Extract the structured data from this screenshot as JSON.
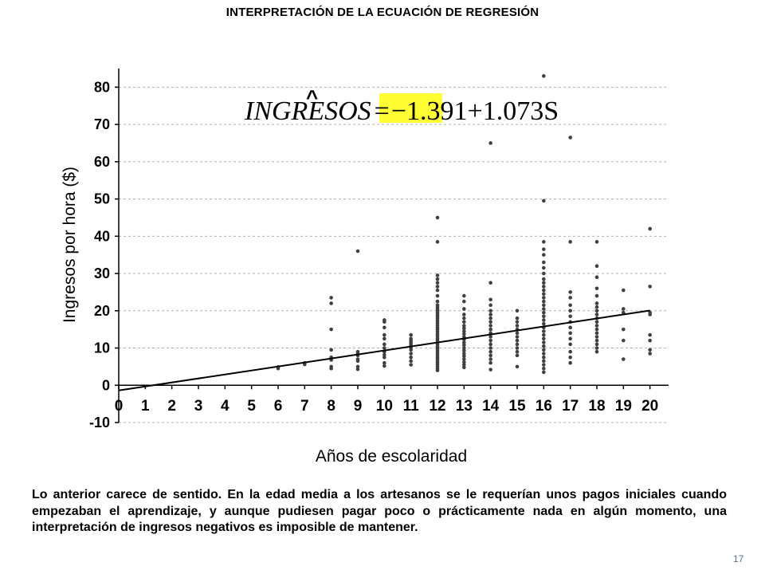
{
  "title": "INTERPRETACIÓN DE LA ECUACIÓN DE REGRESIÓN",
  "chart_data": {
    "type": "scatter",
    "xlabel": "Años de escolaridad",
    "ylabel": "Ingresos por hora ($)",
    "xlim": [
      0,
      20.7
    ],
    "ylim": [
      -10,
      85
    ],
    "x_ticks": [
      "0",
      "1",
      "2",
      "3",
      "4",
      "5",
      "6",
      "7",
      "8",
      "9",
      "10",
      "11",
      "12",
      "13",
      "14",
      "15",
      "16",
      "17",
      "18",
      "19",
      "20"
    ],
    "y_ticks": [
      "-10",
      "0",
      "10",
      "20",
      "30",
      "40",
      "50",
      "60",
      "70",
      "80"
    ],
    "grid": true,
    "equation": {
      "hat": "^",
      "lhs": "INGRESOS",
      "equals": "=",
      "intercept": "−1.391",
      "rest": "+1.073S",
      "highlight_color": "#ffff33"
    },
    "regression_line": {
      "intercept": -1.391,
      "slope": 1.073,
      "x_range": [
        0,
        20
      ]
    },
    "point_color": "#404040",
    "points": [
      [
        6,
        4.5
      ],
      [
        6,
        4.9
      ],
      [
        7,
        5.6
      ],
      [
        7,
        6.0
      ],
      [
        8,
        4.5
      ],
      [
        8,
        5.0
      ],
      [
        8,
        6.8
      ],
      [
        8,
        7.5
      ],
      [
        8,
        9.5
      ],
      [
        8,
        15.0
      ],
      [
        8,
        22.0
      ],
      [
        8,
        23.5
      ],
      [
        9,
        4.3
      ],
      [
        9,
        5.0
      ],
      [
        9,
        6.5
      ],
      [
        9,
        7.0
      ],
      [
        9,
        8.0
      ],
      [
        9,
        8.5
      ],
      [
        9,
        9.0
      ],
      [
        9,
        36.0
      ],
      [
        10,
        5.2
      ],
      [
        10,
        6.0
      ],
      [
        10,
        7.5
      ],
      [
        10,
        8.2
      ],
      [
        10,
        9.0
      ],
      [
        10,
        10.0
      ],
      [
        10,
        11.0
      ],
      [
        10,
        12.5
      ],
      [
        10,
        13.5
      ],
      [
        10,
        15.5
      ],
      [
        10,
        17.0
      ],
      [
        10,
        17.5
      ],
      [
        11,
        5.5
      ],
      [
        11,
        6.5
      ],
      [
        11,
        7.5
      ],
      [
        11,
        8.5
      ],
      [
        11,
        9.5
      ],
      [
        11,
        10.0
      ],
      [
        11,
        10.5
      ],
      [
        11,
        11.0
      ],
      [
        11,
        11.5
      ],
      [
        11,
        12.0
      ],
      [
        11,
        12.5
      ],
      [
        11,
        13.5
      ],
      [
        12,
        4.0
      ],
      [
        12,
        4.5
      ],
      [
        12,
        5.0
      ],
      [
        12,
        5.5
      ],
      [
        12,
        6.0
      ],
      [
        12,
        6.5
      ],
      [
        12,
        7.0
      ],
      [
        12,
        7.5
      ],
      [
        12,
        8.0
      ],
      [
        12,
        8.5
      ],
      [
        12,
        9.0
      ],
      [
        12,
        9.5
      ],
      [
        12,
        10.0
      ],
      [
        12,
        10.5
      ],
      [
        12,
        11.0
      ],
      [
        12,
        11.5
      ],
      [
        12,
        12.0
      ],
      [
        12,
        12.5
      ],
      [
        12,
        13.0
      ],
      [
        12,
        13.5
      ],
      [
        12,
        14.0
      ],
      [
        12,
        14.5
      ],
      [
        12,
        15.0
      ],
      [
        12,
        15.5
      ],
      [
        12,
        16.0
      ],
      [
        12,
        16.5
      ],
      [
        12,
        17.0
      ],
      [
        12,
        17.5
      ],
      [
        12,
        18.0
      ],
      [
        12,
        18.5
      ],
      [
        12,
        19.0
      ],
      [
        12,
        19.5
      ],
      [
        12,
        20.0
      ],
      [
        12,
        20.5
      ],
      [
        12,
        21.0
      ],
      [
        12,
        21.5
      ],
      [
        12,
        22.5
      ],
      [
        12,
        24.0
      ],
      [
        12,
        25.5
      ],
      [
        12,
        26.5
      ],
      [
        12,
        27.5
      ],
      [
        12,
        28.5
      ],
      [
        12,
        29.5
      ],
      [
        12,
        38.5
      ],
      [
        12,
        45.0
      ],
      [
        13,
        4.8
      ],
      [
        13,
        5.5
      ],
      [
        13,
        6.2
      ],
      [
        13,
        7.0
      ],
      [
        13,
        7.8
      ],
      [
        13,
        8.5
      ],
      [
        13,
        9.3
      ],
      [
        13,
        10.0
      ],
      [
        13,
        10.8
      ],
      [
        13,
        11.5
      ],
      [
        13,
        12.3
      ],
      [
        13,
        13.0
      ],
      [
        13,
        13.8
      ],
      [
        13,
        14.5
      ],
      [
        13,
        15.3
      ],
      [
        13,
        16.0
      ],
      [
        13,
        17.0
      ],
      [
        13,
        18.0
      ],
      [
        13,
        19.0
      ],
      [
        13,
        20.5
      ],
      [
        13,
        22.5
      ],
      [
        13,
        24.0
      ],
      [
        14,
        4.2
      ],
      [
        14,
        6.0
      ],
      [
        14,
        7.0
      ],
      [
        14,
        8.0
      ],
      [
        14,
        9.0
      ],
      [
        14,
        10.0
      ],
      [
        14,
        11.0
      ],
      [
        14,
        12.0
      ],
      [
        14,
        13.0
      ],
      [
        14,
        14.0
      ],
      [
        14,
        15.0
      ],
      [
        14,
        16.0
      ],
      [
        14,
        17.0
      ],
      [
        14,
        18.0
      ],
      [
        14,
        19.0
      ],
      [
        14,
        20.0
      ],
      [
        14,
        21.5
      ],
      [
        14,
        23.0
      ],
      [
        14,
        27.5
      ],
      [
        14,
        65.0
      ],
      [
        15,
        5.0
      ],
      [
        15,
        8.0
      ],
      [
        15,
        9.0
      ],
      [
        15,
        10.0
      ],
      [
        15,
        11.0
      ],
      [
        15,
        12.0
      ],
      [
        15,
        13.0
      ],
      [
        15,
        14.0
      ],
      [
        15,
        15.0
      ],
      [
        15,
        16.0
      ],
      [
        15,
        17.0
      ],
      [
        15,
        18.0
      ],
      [
        15,
        20.0
      ],
      [
        16,
        3.5
      ],
      [
        16,
        4.5
      ],
      [
        16,
        5.5
      ],
      [
        16,
        6.5
      ],
      [
        16,
        7.5
      ],
      [
        16,
        8.5
      ],
      [
        16,
        9.5
      ],
      [
        16,
        10.5
      ],
      [
        16,
        11.5
      ],
      [
        16,
        12.5
      ],
      [
        16,
        13.5
      ],
      [
        16,
        14.5
      ],
      [
        16,
        15.5
      ],
      [
        16,
        16.5
      ],
      [
        16,
        17.5
      ],
      [
        16,
        18.5
      ],
      [
        16,
        19.5
      ],
      [
        16,
        20.5
      ],
      [
        16,
        21.5
      ],
      [
        16,
        22.5
      ],
      [
        16,
        23.5
      ],
      [
        16,
        24.5
      ],
      [
        16,
        25.5
      ],
      [
        16,
        26.5
      ],
      [
        16,
        27.5
      ],
      [
        16,
        28.5
      ],
      [
        16,
        30.0
      ],
      [
        16,
        31.5
      ],
      [
        16,
        33.0
      ],
      [
        16,
        35.0
      ],
      [
        16,
        36.5
      ],
      [
        16,
        38.5
      ],
      [
        16,
        49.5
      ],
      [
        16,
        83.0
      ],
      [
        17,
        6.0
      ],
      [
        17,
        7.5
      ],
      [
        17,
        9.0
      ],
      [
        17,
        11.0
      ],
      [
        17,
        12.5
      ],
      [
        17,
        14.0
      ],
      [
        17,
        15.5
      ],
      [
        17,
        17.0
      ],
      [
        17,
        18.5
      ],
      [
        17,
        20.0
      ],
      [
        17,
        21.5
      ],
      [
        17,
        23.5
      ],
      [
        17,
        25.0
      ],
      [
        17,
        38.5
      ],
      [
        17,
        66.5
      ],
      [
        18,
        9.0
      ],
      [
        18,
        10.0
      ],
      [
        18,
        11.0
      ],
      [
        18,
        12.0
      ],
      [
        18,
        13.0
      ],
      [
        18,
        14.0
      ],
      [
        18,
        15.0
      ],
      [
        18,
        16.0
      ],
      [
        18,
        17.0
      ],
      [
        18,
        18.0
      ],
      [
        18,
        19.0
      ],
      [
        18,
        20.0
      ],
      [
        18,
        21.0
      ],
      [
        18,
        22.0
      ],
      [
        18,
        24.0
      ],
      [
        18,
        26.0
      ],
      [
        18,
        29.0
      ],
      [
        18,
        32.0
      ],
      [
        18,
        38.5
      ],
      [
        19,
        7.0
      ],
      [
        19,
        12.0
      ],
      [
        19,
        15.0
      ],
      [
        19,
        19.5
      ],
      [
        19,
        20.5
      ],
      [
        19,
        25.5
      ],
      [
        20,
        8.5
      ],
      [
        20,
        9.5
      ],
      [
        20,
        12.0
      ],
      [
        20,
        13.5
      ],
      [
        20,
        19.0
      ],
      [
        20,
        19.5
      ],
      [
        20,
        26.5
      ],
      [
        20,
        42.0
      ]
    ]
  },
  "paragraph": "Lo anterior carece de sentido.  En la edad media a los artesanos se le requerían unos pagos iniciales cuando empezaban el aprendizaje, y aunque pudiesen pagar poco o prácticamente nada en algún momento, una interpretación de ingresos negativos es imposible de mantener.",
  "page_number": "17"
}
